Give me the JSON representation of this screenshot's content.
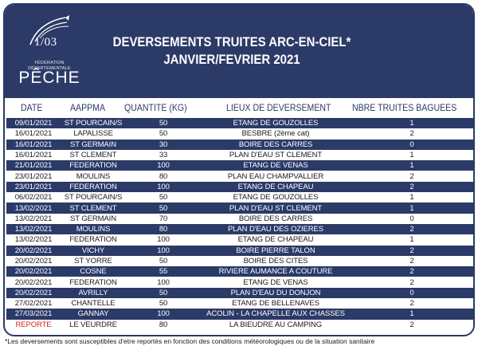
{
  "logo": {
    "number": "1/03",
    "federation": "FÉDÉRATION DÉPARTEMENTALE",
    "brand": "PÊCHE"
  },
  "title": {
    "line1": "DEVERSEMENTS TRUITES ARC-EN-CIEL*",
    "line2": "JANVIER/FEVRIER 2021"
  },
  "columns": {
    "date": "DATE",
    "aappma": "AAPPMA",
    "quantite": "QUANTITE  (KG)",
    "lieux": "LIEUX DE DEVERSEMENT",
    "nbre": "NBRE TRUITES BAGUEES"
  },
  "rows": [
    {
      "date": "09/01/2021",
      "aappma": "ST POURCAIN/S",
      "quantite": "50",
      "lieu": "ETANG DE GOUZOLLES",
      "nbre": "1"
    },
    {
      "date": "16/01/2021",
      "aappma": "LAPALISSE",
      "quantite": "50",
      "lieu": "BESBRE (2ème cat)",
      "nbre": "2"
    },
    {
      "date": "16/01/2021",
      "aappma": "ST GERMAIN",
      "quantite": "30",
      "lieu": "BOIRE DES CARRES",
      "nbre": "0"
    },
    {
      "date": "16/01/2021",
      "aappma": "ST CLEMENT",
      "quantite": "33",
      "lieu": "PLAN D'EAU ST CLEMENT",
      "nbre": "1"
    },
    {
      "date": "21/01/2021",
      "aappma": "FEDERATION",
      "quantite": "100",
      "lieu": "ETANG DE VENAS",
      "nbre": "1"
    },
    {
      "date": "23/01/2021",
      "aappma": "MOULINS",
      "quantite": "80",
      "lieu": "PLAN EAU CHAMPVALLIER",
      "nbre": "2"
    },
    {
      "date": "23/01/2021",
      "aappma": "FEDERATION",
      "quantite": "100",
      "lieu": "ETANG DE CHAPEAU",
      "nbre": "2"
    },
    {
      "date": "06/02/2021",
      "aappma": "ST POURCAIN/S",
      "quantite": "50",
      "lieu": "ETANG DE GOUZOLLES",
      "nbre": "1"
    },
    {
      "date": "13/02/2021",
      "aappma": "ST CLEMENT",
      "quantite": "50",
      "lieu": "PLAN D'EAU ST CLEMENT",
      "nbre": "1"
    },
    {
      "date": "13/02/2021",
      "aappma": "ST GERMAIN",
      "quantite": "70",
      "lieu": "BOIRE DES CARRES",
      "nbre": "0"
    },
    {
      "date": "13/02/2021",
      "aappma": "MOULINS",
      "quantite": "80",
      "lieu": "PLAN D'EAU DES OZIERES",
      "nbre": "2"
    },
    {
      "date": "13/02/2021",
      "aappma": "FEDERATION",
      "quantite": "100",
      "lieu": "ETANG DE CHAPEAU",
      "nbre": "1"
    },
    {
      "date": "20/02/2021",
      "aappma": "VICHY",
      "quantite": "100",
      "lieu": "BOIRE PIERRE TALON",
      "nbre": "2"
    },
    {
      "date": "20/02/2021",
      "aappma": "ST YORRE",
      "quantite": "50",
      "lieu": "BOIRE DES CITES",
      "nbre": "2"
    },
    {
      "date": "20/02/2021",
      "aappma": "COSNE",
      "quantite": "55",
      "lieu": "RIVIERE AUMANCE A COUTURE",
      "nbre": "2"
    },
    {
      "date": "20/02/2021",
      "aappma": "FEDERATION",
      "quantite": "100",
      "lieu": "ETANG DE VENAS",
      "nbre": "2"
    },
    {
      "date": "20/02/2021",
      "aappma": "AVRILLY",
      "quantite": "50",
      "lieu": "PLAN D'EAU DU DONJON",
      "nbre": "0"
    },
    {
      "date": "27/02/2021",
      "aappma": "CHANTELLE",
      "quantite": "50",
      "lieu": "ETANG DE BELLENAVES",
      "nbre": "2"
    },
    {
      "date": "27/03/2021",
      "aappma": "GANNAY",
      "quantite": "100",
      "lieu": "ACOLIN - LA CHAPELLE AUX CHASSES",
      "nbre": "1"
    },
    {
      "date": "REPORTE",
      "aappma": "LE VEURDRE",
      "quantite": "80",
      "lieu": "LA BIEUDRE AU CAMPING",
      "nbre": "2",
      "date_color": "#d8232a"
    }
  ],
  "footnote": "*Les deversements sont susceptibles d'etre reportés en fonction des conditions météorologiques ou de la situation sanitaire",
  "colors": {
    "navy": "#2b3a67",
    "white": "#ffffff",
    "red": "#d8232a"
  }
}
